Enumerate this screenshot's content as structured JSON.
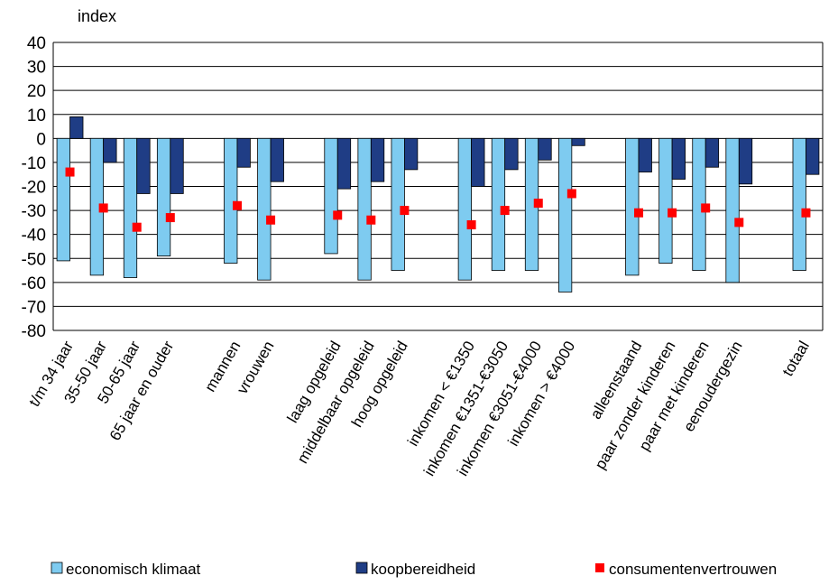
{
  "chart_data": {
    "type": "bar",
    "ylabel": "index",
    "ylim": [
      -80,
      40
    ],
    "ytick_step": 10,
    "grid": true,
    "legend_position": "bottom",
    "groups": [
      [
        0,
        1,
        2,
        3
      ],
      [
        4,
        5
      ],
      [
        6,
        7,
        8
      ],
      [
        9,
        10,
        11,
        12
      ],
      [
        13,
        14,
        15,
        16
      ],
      [
        17
      ]
    ],
    "categories": [
      "t/m 34 jaar",
      "35-50 jaar",
      "50-65 jaar",
      "65 jaar en ouder",
      "mannen",
      "vrouwen",
      "laag opgeleid",
      "middelbaar opgeleid",
      "hoog opgeleid",
      "inkomen < €1350",
      "inkomen €1351-€3050",
      "inkomen €3051-€4000",
      "inkomen > €4000",
      "alleenstaand",
      "paar zonder kinderen",
      "paar met kinderen",
      "eenoudergezin",
      "totaal"
    ],
    "series": [
      {
        "name": "economisch klimaat",
        "kind": "bar",
        "color": "#7ecbf0",
        "values": [
          -51,
          -57,
          -58,
          -49,
          -52,
          -59,
          -48,
          -59,
          -55,
          -59,
          -55,
          -55,
          -64,
          -57,
          -52,
          -55,
          -60,
          -55
        ]
      },
      {
        "name": "koopbereidheid",
        "kind": "bar",
        "color": "#1f3d85",
        "values": [
          9,
          -10,
          -23,
          -23,
          -12,
          -18,
          -21,
          -18,
          -13,
          -20,
          -13,
          -9,
          -3,
          -14,
          -17,
          -12,
          -19,
          -15
        ]
      },
      {
        "name": "consumentenvertrouwen",
        "kind": "marker",
        "color": "#ff0000",
        "values": [
          -14,
          -29,
          -37,
          -33,
          -28,
          -34,
          -32,
          -34,
          -30,
          -36,
          -30,
          -27,
          -23,
          -31,
          -31,
          -29,
          -35,
          -31
        ]
      }
    ]
  }
}
